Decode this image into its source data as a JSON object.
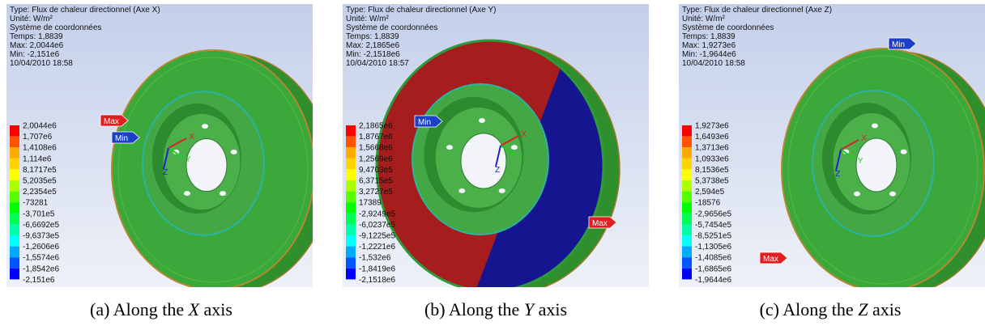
{
  "panels": [
    {
      "header": [
        "Type: Flux de chaleur directionnel (Axe X)",
        "Unité: W/m²",
        "Système de coordonnées",
        "Temps: 1,8839",
        "Max: 2,0044e6",
        "Min: -2,151e6",
        "10/04/2010 18:58"
      ],
      "legend": [
        "2,0044e6",
        "1,707e6",
        "1,4108e6",
        "1,114e6",
        "8,1717e5",
        "5,2035e5",
        "2,2354e5",
        "-73281",
        "-3,701e5",
        "-6,6692e5",
        "-9,6373e5",
        "-1,2606e6",
        "-1,5574e6",
        "-1,8542e6",
        "-2,151e6"
      ],
      "max_tag": "Max",
      "min_tag": "Min",
      "triad": [
        "X",
        "Y",
        "Z"
      ],
      "caption": {
        "prefix": "(a) Along the",
        "axis": "X",
        "suffix": "axis"
      }
    },
    {
      "header": [
        "Type: Flux de chaleur directionnel (Axe Y)",
        "Unité: W/m²",
        "Système de coordonnées",
        "Temps: 1,8839",
        "Max: 2,1865e6",
        "Min: -2,1518e6",
        "10/04/2010 18:57"
      ],
      "legend": [
        "2,1865e6",
        "1,8767e6",
        "1,5668e6",
        "1,2569e6",
        "9,4703e5",
        "6,3715e5",
        "3,2727e5",
        "17389",
        "-2,9249e5",
        "-6,0237e5",
        "-9,1225e5",
        "-1,2221e6",
        "-1,532e6",
        "-1,8419e6",
        "-2,1518e6"
      ],
      "max_tag": "Max",
      "min_tag": "Min",
      "triad": [
        "X",
        "Y",
        "Z"
      ],
      "caption": {
        "prefix": "(b) Along the",
        "axis": "Y",
        "suffix": "axis"
      }
    },
    {
      "header": [
        "Type: Flux de chaleur directionnel (Axe Z)",
        "Unité: W/m²",
        "Système de coordonnées",
        "Temps: 1,8839",
        "Max: 1,9273e6",
        "Min: -1,9644e6",
        "10/04/2010 18:58"
      ],
      "legend": [
        "1,9273e6",
        "1,6493e6",
        "1,3713e6",
        "1,0933e6",
        "8,1536e5",
        "5,3738e5",
        "2,594e5",
        "-18576",
        "-2,9656e5",
        "-5,7454e5",
        "-8,5251e5",
        "-1,1305e6",
        "-1,4085e6",
        "-1,6865e6",
        "-1,9644e6"
      ],
      "max_tag": "Max",
      "min_tag": "Min",
      "triad": [
        "X",
        "Y",
        "Z"
      ],
      "caption": {
        "prefix": "(c) Along the",
        "axis": "Z",
        "suffix": "axis"
      }
    }
  ]
}
